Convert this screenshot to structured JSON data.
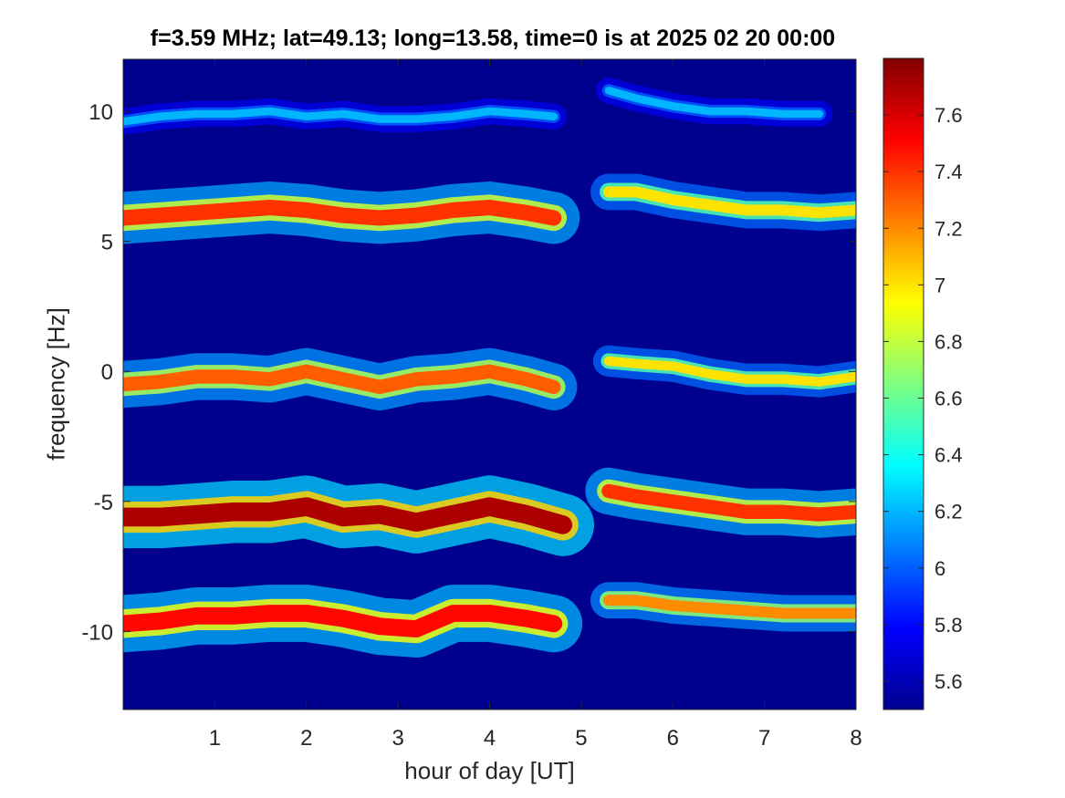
{
  "chart_data": {
    "type": "heatmap",
    "title": "f=3.59 MHz;  lat=49.13; long=13.58, time=0 is at 2025 02 20 00:00",
    "xlabel": "hour of day [UT]",
    "ylabel": "frequency [Hz]",
    "xlim": [
      0,
      8
    ],
    "ylim": [
      -13,
      12
    ],
    "xticks": [
      1,
      2,
      3,
      4,
      5,
      6,
      7,
      8
    ],
    "xtick_labels": [
      "1",
      "2",
      "3",
      "4",
      "5",
      "6",
      "7",
      "8"
    ],
    "yticks": [
      -10,
      -5,
      0,
      5,
      10
    ],
    "ytick_labels": [
      "-10",
      "-5",
      "0",
      "5",
      "10"
    ],
    "background_color": "#00008F",
    "colormap": "jet",
    "colorbar": {
      "range": [
        5.5,
        7.8
      ],
      "ticks": [
        5.6,
        5.8,
        6,
        6.2,
        6.4,
        6.6,
        6.8,
        7,
        7.2,
        7.4,
        7.6
      ],
      "tick_labels": [
        "5.6",
        "5.8",
        "6",
        "6.2",
        "6.4",
        "6.6",
        "6.8",
        "7",
        "7.2",
        "7.4",
        "7.6"
      ]
    },
    "data_gap": [
      4.8,
      5.25
    ],
    "traces": [
      {
        "segment": "before-gap",
        "intensity": 6.2,
        "spread": 0.25,
        "x": [
          0.0,
          0.4,
          0.8,
          1.2,
          1.6,
          2.0,
          2.4,
          2.8,
          3.2,
          3.6,
          4.0,
          4.4,
          4.7
        ],
        "y": [
          9.6,
          9.8,
          9.9,
          9.9,
          10.0,
          9.8,
          9.9,
          9.7,
          9.7,
          9.8,
          10.0,
          9.9,
          9.8
        ]
      },
      {
        "segment": "after-gap",
        "intensity": 6.2,
        "spread": 0.25,
        "x": [
          5.3,
          5.6,
          6.0,
          6.4,
          6.8,
          7.2,
          7.6
        ],
        "y": [
          10.8,
          10.5,
          10.2,
          10.0,
          10.0,
          9.9,
          9.9
        ]
      },
      {
        "segment": "before-gap",
        "intensity": 7.4,
        "spread": 0.5,
        "x": [
          0.0,
          0.4,
          0.8,
          1.2,
          1.6,
          2.0,
          2.4,
          2.8,
          3.2,
          3.6,
          4.0,
          4.4,
          4.7
        ],
        "y": [
          5.9,
          6.0,
          6.1,
          6.2,
          6.3,
          6.2,
          6.0,
          5.9,
          6.0,
          6.2,
          6.3,
          6.1,
          5.9
        ]
      },
      {
        "segment": "after-gap",
        "intensity": 7.0,
        "spread": 0.35,
        "x": [
          5.3,
          5.6,
          6.0,
          6.4,
          6.8,
          7.2,
          7.6,
          8.0
        ],
        "y": [
          6.9,
          6.9,
          6.6,
          6.4,
          6.2,
          6.2,
          6.1,
          6.2
        ]
      },
      {
        "segment": "before-gap",
        "intensity": 7.3,
        "spread": 0.45,
        "x": [
          0.0,
          0.4,
          0.8,
          1.2,
          1.6,
          2.0,
          2.4,
          2.8,
          3.2,
          3.6,
          4.0,
          4.4,
          4.7
        ],
        "y": [
          -0.5,
          -0.4,
          -0.2,
          -0.2,
          -0.3,
          0.0,
          -0.3,
          -0.6,
          -0.3,
          -0.2,
          0.0,
          -0.3,
          -0.6
        ]
      },
      {
        "segment": "after-gap",
        "intensity": 7.0,
        "spread": 0.3,
        "x": [
          5.3,
          5.6,
          6.0,
          6.4,
          6.8,
          7.2,
          7.6,
          8.0
        ],
        "y": [
          0.4,
          0.3,
          0.2,
          -0.1,
          -0.3,
          -0.3,
          -0.4,
          -0.2
        ]
      },
      {
        "segment": "before-gap",
        "intensity": 7.7,
        "spread": 0.6,
        "x": [
          0.0,
          0.4,
          0.8,
          1.2,
          1.6,
          2.0,
          2.4,
          2.8,
          3.2,
          3.6,
          4.0,
          4.4,
          4.8
        ],
        "y": [
          -5.6,
          -5.6,
          -5.5,
          -5.4,
          -5.4,
          -5.2,
          -5.6,
          -5.5,
          -5.8,
          -5.5,
          -5.2,
          -5.5,
          -5.9
        ]
      },
      {
        "segment": "after-gap",
        "intensity": 7.4,
        "spread": 0.45,
        "x": [
          5.3,
          5.6,
          6.0,
          6.4,
          6.8,
          7.2,
          7.6,
          8.0
        ],
        "y": [
          -4.6,
          -4.8,
          -5.0,
          -5.2,
          -5.4,
          -5.4,
          -5.5,
          -5.4
        ]
      },
      {
        "segment": "before-gap",
        "intensity": 7.5,
        "spread": 0.55,
        "x": [
          0.0,
          0.4,
          0.8,
          1.2,
          1.6,
          2.0,
          2.4,
          2.8,
          3.2,
          3.6,
          4.0,
          4.4,
          4.7
        ],
        "y": [
          -9.7,
          -9.6,
          -9.4,
          -9.4,
          -9.3,
          -9.3,
          -9.5,
          -9.8,
          -9.9,
          -9.3,
          -9.3,
          -9.5,
          -9.7
        ]
      },
      {
        "segment": "after-gap",
        "intensity": 7.2,
        "spread": 0.35,
        "x": [
          5.3,
          5.6,
          6.0,
          6.4,
          6.8,
          7.2,
          7.6,
          8.0
        ],
        "y": [
          -8.8,
          -8.8,
          -9.0,
          -9.1,
          -9.2,
          -9.3,
          -9.3,
          -9.3
        ]
      }
    ]
  }
}
